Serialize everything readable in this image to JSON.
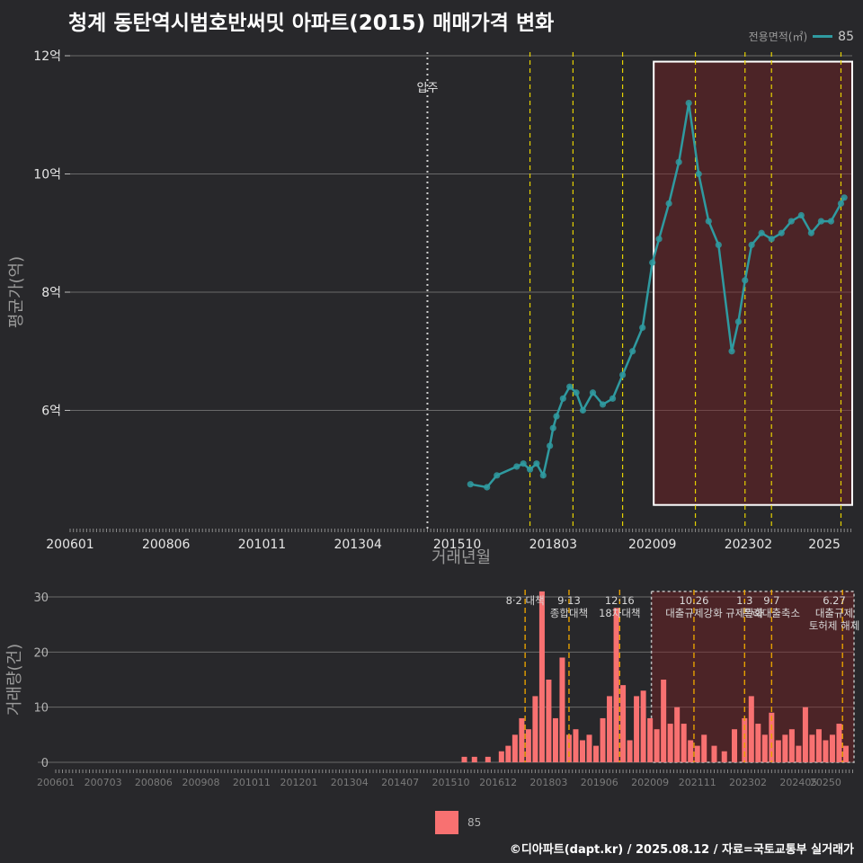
{
  "title": "청계 동탄역시범호반써밋 아파트(2015) 매매가격 변화",
  "legend": {
    "title": "전용면적(㎡)",
    "value": "85",
    "line_color": "#2f9aa0"
  },
  "bar_legend": {
    "label": "85",
    "color": "#f87171"
  },
  "credit": "©디아파트(dapt.kr) / 2025.08.12 / 자료=국토교통부 실거래가",
  "colors": {
    "background": "#28282b",
    "price": "#2f9aa0",
    "volume": "#f87171",
    "policy": "#e6d200"
  },
  "chart_data": [
    {
      "type": "line",
      "title": "",
      "xlabel": "거래년월",
      "ylabel": "평균가(억)",
      "x_ticks": [
        "200601",
        "200806",
        "201011",
        "201304",
        "201510",
        "201803",
        "202009",
        "202302",
        "2025"
      ],
      "y_ticks": [
        "6억",
        "8억",
        "10억",
        "12억"
      ],
      "ylim": [
        4.0,
        12.0
      ],
      "annotation": "입주",
      "series": [
        {
          "name": "85",
          "points": [
            [
              "2016-02",
              4.75
            ],
            [
              "2016-07",
              4.7
            ],
            [
              "2016-10",
              4.9
            ],
            [
              "2017-04",
              5.05
            ],
            [
              "2017-06",
              5.1
            ],
            [
              "2017-08",
              5.0
            ],
            [
              "2017-10",
              5.1
            ],
            [
              "2017-12",
              4.9
            ],
            [
              "2018-02",
              5.4
            ],
            [
              "2018-03",
              5.7
            ],
            [
              "2018-04",
              5.9
            ],
            [
              "2018-06",
              6.2
            ],
            [
              "2018-08",
              6.4
            ],
            [
              "2018-10",
              6.3
            ],
            [
              "2018-12",
              6.0
            ],
            [
              "2019-03",
              6.3
            ],
            [
              "2019-06",
              6.1
            ],
            [
              "2019-09",
              6.2
            ],
            [
              "2019-12",
              6.6
            ],
            [
              "2020-03",
              7.0
            ],
            [
              "2020-06",
              7.4
            ],
            [
              "2020-09",
              8.5
            ],
            [
              "2020-11",
              8.9
            ],
            [
              "2021-02",
              9.5
            ],
            [
              "2021-05",
              10.2
            ],
            [
              "2021-08",
              11.2
            ],
            [
              "2021-11",
              10.0
            ],
            [
              "2022-02",
              9.2
            ],
            [
              "2022-05",
              8.8
            ],
            [
              "2022-09",
              7.0
            ],
            [
              "2022-11",
              7.5
            ],
            [
              "2023-01",
              8.2
            ],
            [
              "2023-03",
              8.8
            ],
            [
              "2023-06",
              9.0
            ],
            [
              "2023-09",
              8.9
            ],
            [
              "2023-12",
              9.0
            ],
            [
              "2024-03",
              9.2
            ],
            [
              "2024-06",
              9.3
            ],
            [
              "2024-09",
              9.0
            ],
            [
              "2024-12",
              9.2
            ],
            [
              "2025-03",
              9.2
            ],
            [
              "2025-06",
              9.5
            ],
            [
              "2025-07",
              9.6
            ]
          ]
        }
      ]
    },
    {
      "type": "bar",
      "title": "",
      "xlabel": "",
      "ylabel": "거래량(건)",
      "x_ticks": [
        "200601",
        "200703",
        "200806",
        "200908",
        "201011",
        "201201",
        "201304",
        "201407",
        "201510",
        "201612",
        "201803",
        "201906",
        "202009",
        "202111",
        "202302",
        "202405",
        "20250"
      ],
      "y_ticks": [
        "0",
        "10",
        "20",
        "30"
      ],
      "ylim": [
        0,
        30
      ],
      "policy_events": [
        {
          "date": "2017-08",
          "labels": [
            "8·2 대책"
          ]
        },
        {
          "date": "2018-09",
          "labels": [
            "9·13",
            "종합대책"
          ]
        },
        {
          "date": "2019-12",
          "labels": [
            "12·16",
            "18차대책"
          ]
        },
        {
          "date": "2021-10",
          "labels": [
            "10.26",
            "대출규제강화"
          ]
        },
        {
          "date": "2023-01",
          "labels": [
            "1.3",
            "규제완화"
          ]
        },
        {
          "date": "2023-09",
          "labels": [
            "9.7",
            "특례대출축소"
          ]
        },
        {
          "date": "2025-06",
          "labels": [
            "6.27",
            "대출규제",
            "토허제 해제"
          ]
        }
      ],
      "series": [
        {
          "name": "85",
          "values": [
            [
              "2016-02",
              1
            ],
            [
              "2016-05",
              1
            ],
            [
              "2016-09",
              1
            ],
            [
              "2017-01",
              2
            ],
            [
              "2017-03",
              3
            ],
            [
              "2017-05",
              5
            ],
            [
              "2017-07",
              8
            ],
            [
              "2017-09",
              6
            ],
            [
              "2017-11",
              12
            ],
            [
              "2018-01",
              31
            ],
            [
              "2018-03",
              15
            ],
            [
              "2018-05",
              8
            ],
            [
              "2018-07",
              19
            ],
            [
              "2018-09",
              5
            ],
            [
              "2018-11",
              6
            ],
            [
              "2019-01",
              4
            ],
            [
              "2019-03",
              5
            ],
            [
              "2019-05",
              3
            ],
            [
              "2019-07",
              8
            ],
            [
              "2019-09",
              12
            ],
            [
              "2019-11",
              28
            ],
            [
              "2020-01",
              14
            ],
            [
              "2020-03",
              4
            ],
            [
              "2020-05",
              12
            ],
            [
              "2020-07",
              13
            ],
            [
              "2020-09",
              8
            ],
            [
              "2020-11",
              6
            ],
            [
              "2021-01",
              15
            ],
            [
              "2021-03",
              7
            ],
            [
              "2021-05",
              10
            ],
            [
              "2021-07",
              7
            ],
            [
              "2021-09",
              4
            ],
            [
              "2021-11",
              3
            ],
            [
              "2022-01",
              5
            ],
            [
              "2022-04",
              3
            ],
            [
              "2022-07",
              2
            ],
            [
              "2022-10",
              6
            ],
            [
              "2023-01",
              8
            ],
            [
              "2023-03",
              12
            ],
            [
              "2023-05",
              7
            ],
            [
              "2023-07",
              5
            ],
            [
              "2023-09",
              9
            ],
            [
              "2023-11",
              4
            ],
            [
              "2024-01",
              5
            ],
            [
              "2024-03",
              6
            ],
            [
              "2024-05",
              3
            ],
            [
              "2024-07",
              10
            ],
            [
              "2024-09",
              5
            ],
            [
              "2024-11",
              6
            ],
            [
              "2025-01",
              4
            ],
            [
              "2025-03",
              5
            ],
            [
              "2025-05",
              7
            ],
            [
              "2025-07",
              3
            ]
          ]
        }
      ]
    }
  ]
}
